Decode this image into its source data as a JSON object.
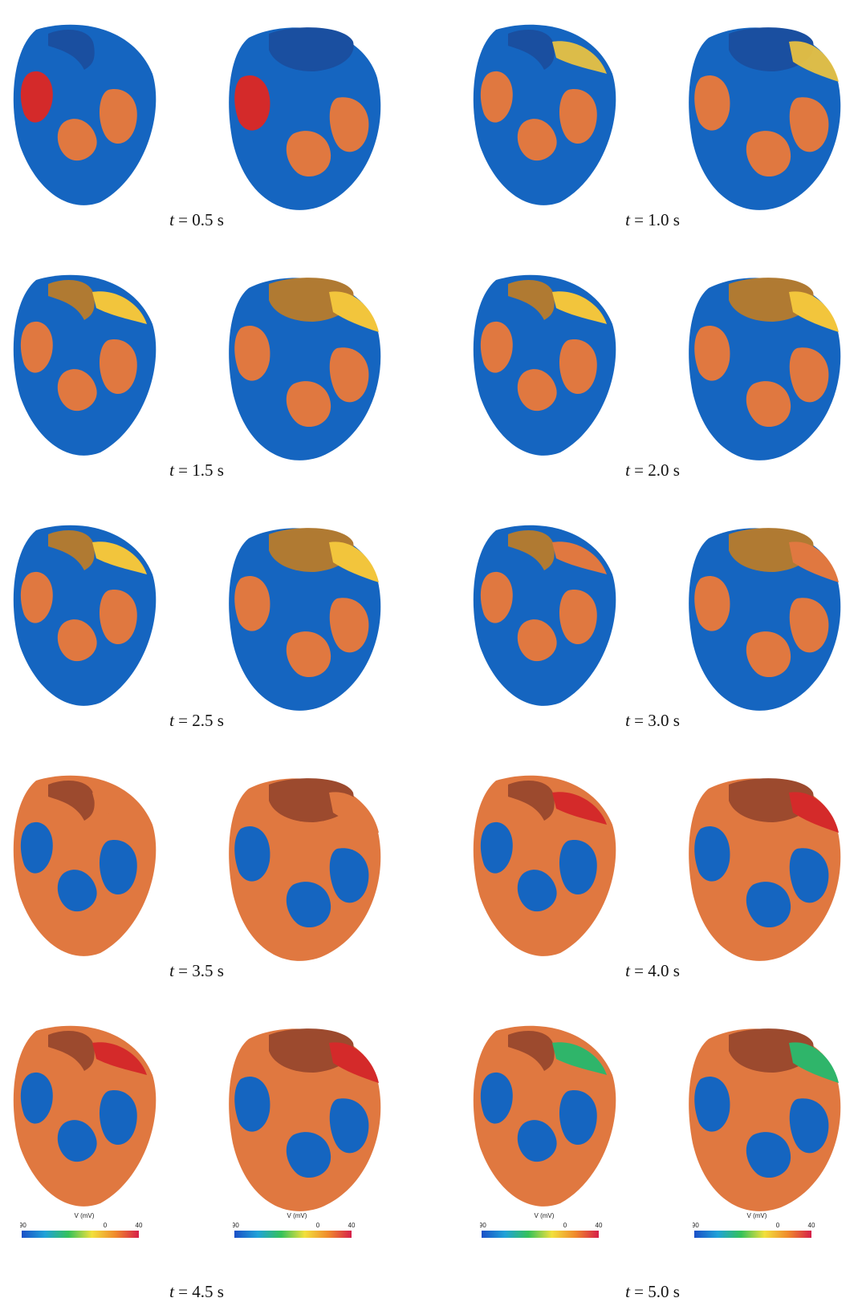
{
  "figure": {
    "colors": {
      "resting_blue": "#1565c0",
      "excited_orange": "#e07840",
      "peak_red": "#d42a2a",
      "front_yellow": "#f2c53c",
      "front_green": "#2fb56a"
    },
    "panels": [
      {
        "var": "t",
        "eq": "= 0.5 s",
        "time_s": 0.5
      },
      {
        "var": "t",
        "eq": "= 1.0 s",
        "time_s": 1.0
      },
      {
        "var": "t",
        "eq": "= 1.5 s",
        "time_s": 1.5
      },
      {
        "var": "t",
        "eq": "= 2.0 s",
        "time_s": 2.0
      },
      {
        "var": "t",
        "eq": "= 2.5 s",
        "time_s": 2.5
      },
      {
        "var": "t",
        "eq": "= 3.0 s",
        "time_s": 3.0
      },
      {
        "var": "t",
        "eq": "= 3.5 s",
        "time_s": 3.5
      },
      {
        "var": "t",
        "eq": "= 4.0 s",
        "time_s": 4.0
      },
      {
        "var": "t",
        "eq": "= 4.5 s",
        "time_s": 4.5
      },
      {
        "var": "t",
        "eq": "= 5.0 s",
        "time_s": 5.0
      }
    ],
    "colorbar": {
      "title": "V (mV)",
      "tick_min": "-90",
      "tick_mid": "0",
      "tick_max": "40",
      "stops": [
        "#1a4fc7",
        "#1fa2d8",
        "#35c25a",
        "#f2e03c",
        "#f08a2c",
        "#d61f4a"
      ]
    }
  }
}
